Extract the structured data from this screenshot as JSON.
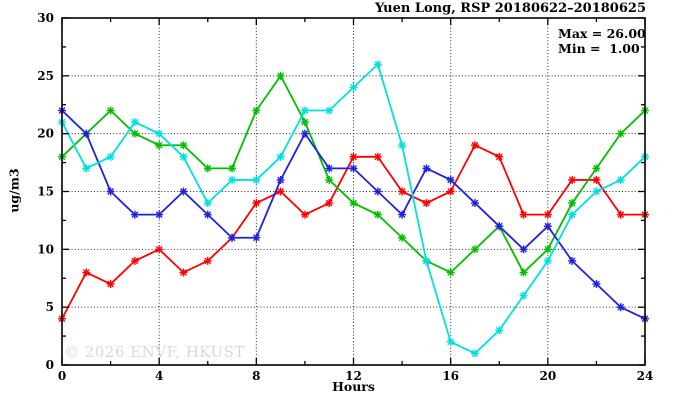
{
  "chart_data": {
    "type": "line",
    "title": "Yuen Long, RSP 20180622–20180625",
    "xlabel": "Hours",
    "ylabel": "ug/m3",
    "xlim": [
      0,
      24
    ],
    "ylim": [
      0,
      30
    ],
    "x_major_ticks": [
      0,
      4,
      8,
      12,
      16,
      20,
      24
    ],
    "x_minor_step": 2,
    "y_major_ticks": [
      0,
      5,
      10,
      15,
      20,
      25,
      30
    ],
    "y_minor_step": 2.5,
    "grid": "dotted-at-major-ticks",
    "legend_position": "none",
    "marker": "asterisk",
    "annotations": {
      "max": "Max = 26.00",
      "min": "Min =  1.00"
    },
    "watermark": "© 2026 ENVF, HKUST",
    "x": [
      0,
      1,
      2,
      3,
      4,
      5,
      6,
      7,
      8,
      9,
      10,
      11,
      12,
      13,
      14,
      15,
      16,
      17,
      18,
      19,
      20,
      21,
      22,
      23,
      24
    ],
    "series": [
      {
        "name": "series-red",
        "color": "#ff0000",
        "values": [
          4,
          8,
          7,
          9,
          10,
          8,
          9,
          11,
          14,
          15,
          13,
          14,
          18,
          18,
          15,
          14,
          15,
          19,
          18,
          13,
          13,
          16,
          16,
          13,
          13
        ]
      },
      {
        "name": "series-green",
        "color": "#00bf00",
        "values": [
          18,
          20,
          22,
          20,
          19,
          19,
          17,
          17,
          22,
          25,
          21,
          16,
          14,
          13,
          11,
          9,
          8,
          10,
          12,
          8,
          10,
          14,
          17,
          20,
          22
        ]
      },
      {
        "name": "series-blue",
        "color": "#2020e0",
        "values": [
          22,
          20,
          15,
          13,
          13,
          15,
          13,
          11,
          11,
          16,
          20,
          17,
          17,
          15,
          13,
          17,
          16,
          14,
          12,
          10,
          12,
          9,
          7,
          5,
          4
        ]
      },
      {
        "name": "series-cyan",
        "color": "#00e0e0",
        "values": [
          21,
          17,
          18,
          21,
          20,
          18,
          14,
          16,
          16,
          18,
          22,
          22,
          24,
          26,
          19,
          9,
          2,
          1,
          3,
          6,
          9,
          13,
          15,
          16,
          18
        ]
      }
    ]
  }
}
